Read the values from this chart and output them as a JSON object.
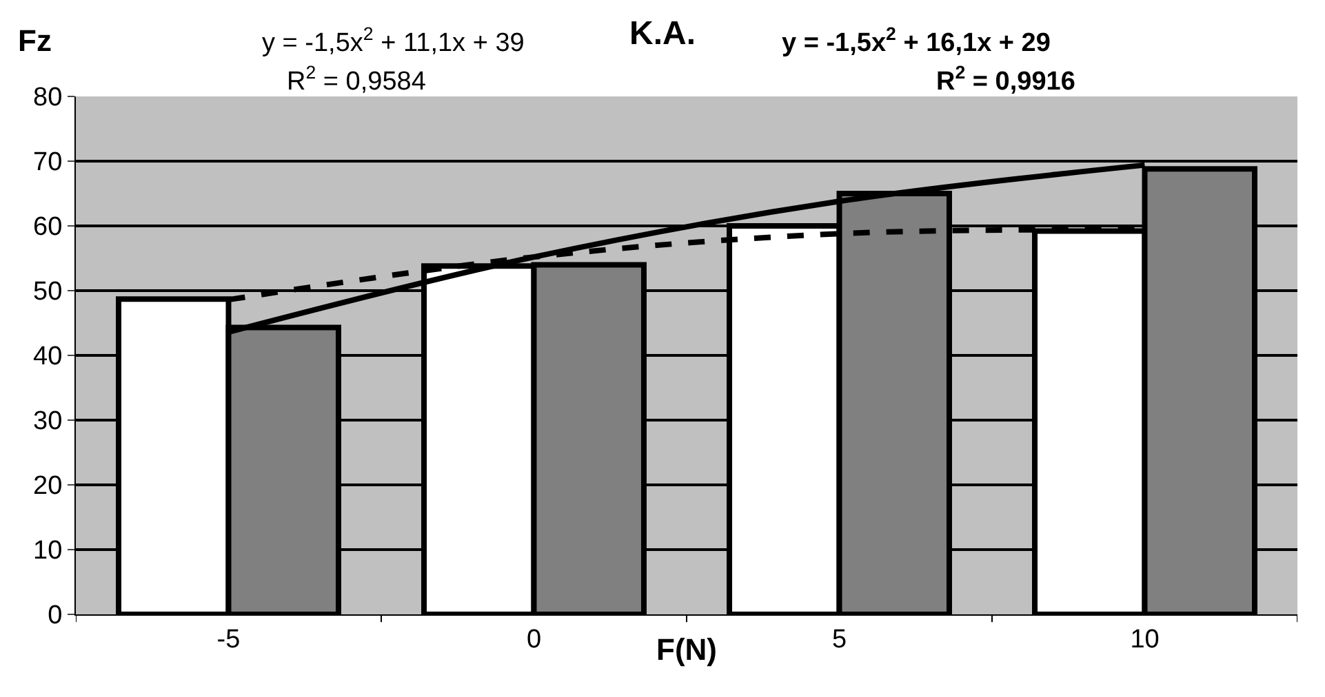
{
  "chart_data": {
    "type": "bar",
    "title": "K.A.",
    "xlabel": "F(N)",
    "ylabel": "Fz",
    "categories": [
      "-5",
      "0",
      "5",
      "10"
    ],
    "series": [
      {
        "color": "#ffffff",
        "values": [
          48.7,
          53.8,
          60,
          59.2
        ]
      },
      {
        "color": "#808080",
        "values": [
          44.3,
          54,
          65,
          68.8
        ]
      },
      {
        "type": "line",
        "color": "#000000",
        "line_style": "dashed",
        "x": [
          "-5",
          "0",
          "5",
          "10"
        ],
        "values": [
          48.6,
          55.2,
          58.8,
          59.4
        ]
      },
      {
        "type": "line",
        "color": "#000000",
        "line_style": "solid",
        "x": [
          "-5",
          "0",
          "5",
          "10"
        ],
        "values": [
          43.6,
          55.2,
          63.8,
          69.4
        ]
      }
    ],
    "ylim": [
      0,
      80
    ],
    "yticks": [
      0,
      10,
      20,
      30,
      40,
      50,
      60,
      70,
      80
    ],
    "grid": "y",
    "annotations": [
      "y = -1,5x$^{2}$ + 11,1x + 39",
      "R$^{2}$ = 0,9584",
      "y = -1,5x$^{2}$ + 16,1x + 29",
      "R$^{2}$ = 0,9916"
    ]
  }
}
